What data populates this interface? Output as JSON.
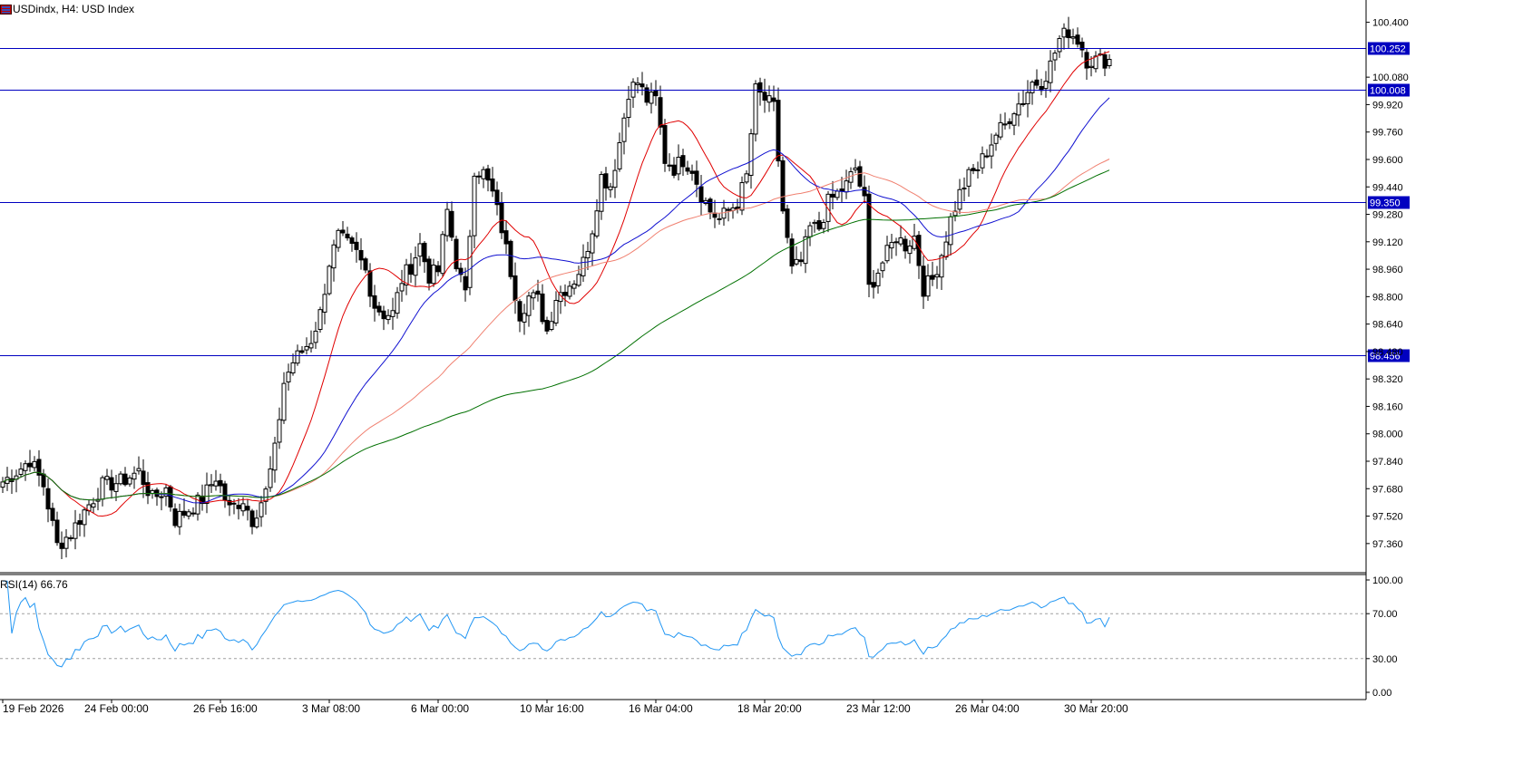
{
  "header": {
    "symbol": "USDindx",
    "timeframe": "H4",
    "description": "USD Index",
    "title": "USDindx, H4:  USD Index"
  },
  "colors": {
    "background": "#ffffff",
    "grid_frame": "#000000",
    "hline": "#0000c0",
    "ma_red": "#e00000",
    "ma_blue": "#1010d0",
    "ma_salmon": "#f08070",
    "ma_green": "#007000",
    "rsi_line": "#2196f3",
    "label_bg": "#0000c0",
    "label_text": "#ffffff"
  },
  "price_axis": {
    "ticks": [
      "100.400",
      "100.080",
      "99.920",
      "99.760",
      "99.600",
      "99.440",
      "99.280",
      "99.120",
      "98.960",
      "98.800",
      "98.640",
      "98.480",
      "98.320",
      "98.160",
      "98.000",
      "97.840",
      "97.680",
      "97.520",
      "97.360"
    ],
    "tick_values": [
      100.4,
      100.08,
      99.92,
      99.76,
      99.6,
      99.44,
      99.28,
      99.12,
      98.96,
      98.8,
      98.64,
      98.48,
      98.32,
      98.16,
      98.0,
      97.84,
      97.68,
      97.52,
      97.36
    ],
    "range": [
      97.19,
      100.53
    ]
  },
  "horizontal_lines": [
    {
      "value": 100.252,
      "label": "100.252"
    },
    {
      "value": 100.008,
      "label": "100.008"
    },
    {
      "value": 99.35,
      "label": "99.350"
    },
    {
      "value": 98.456,
      "label": "98.456"
    }
  ],
  "time_axis": {
    "labels": [
      "19 Feb 2026",
      "24 Feb 00:00",
      "26 Feb 16:00",
      "3 Mar 08:00",
      "6 Mar 00:00",
      "10 Mar 16:00",
      "16 Mar 04:00",
      "18 Mar 20:00",
      "23 Mar 12:00",
      "26 Mar 04:00",
      "30 Mar 20:00"
    ],
    "bar_index": [
      0,
      24,
      48,
      72,
      96,
      120,
      144,
      168,
      192,
      216,
      240
    ]
  },
  "rsi": {
    "label": "RSI(14) 66.76",
    "period": 14,
    "value": 66.76,
    "levels": [
      70,
      30
    ],
    "ticks": [
      "100.00",
      "70.00",
      "30.00",
      "0.00"
    ],
    "tick_values": [
      100,
      70,
      30,
      0
    ]
  },
  "chart_data": {
    "type": "candlestick",
    "bars": 245,
    "anchors": [
      [
        0,
        97.72
      ],
      [
        4,
        97.8
      ],
      [
        6,
        97.85
      ],
      [
        9,
        97.7
      ],
      [
        12,
        97.35
      ],
      [
        15,
        97.42
      ],
      [
        18,
        97.55
      ],
      [
        22,
        97.7
      ],
      [
        26,
        97.72
      ],
      [
        30,
        97.78
      ],
      [
        33,
        97.62
      ],
      [
        36,
        97.68
      ],
      [
        38,
        97.5
      ],
      [
        41,
        97.56
      ],
      [
        44,
        97.62
      ],
      [
        47,
        97.75
      ],
      [
        50,
        97.56
      ],
      [
        53,
        97.62
      ],
      [
        55,
        97.5
      ],
      [
        58,
        97.66
      ],
      [
        60,
        97.9
      ],
      [
        62,
        98.3
      ],
      [
        64,
        98.42
      ],
      [
        66,
        98.48
      ],
      [
        68,
        98.55
      ],
      [
        70,
        98.7
      ],
      [
        72,
        99.0
      ],
      [
        74,
        99.15
      ],
      [
        76,
        99.1
      ],
      [
        78,
        99.05
      ],
      [
        80,
        98.95
      ],
      [
        82,
        98.75
      ],
      [
        84,
        98.7
      ],
      [
        86,
        98.7
      ],
      [
        88,
        98.9
      ],
      [
        90,
        98.98
      ],
      [
        92,
        99.1
      ],
      [
        94,
        98.92
      ],
      [
        96,
        98.95
      ],
      [
        98,
        99.3
      ],
      [
        100,
        99.0
      ],
      [
        102,
        98.8
      ],
      [
        104,
        99.55
      ],
      [
        106,
        99.52
      ],
      [
        108,
        99.4
      ],
      [
        110,
        99.2
      ],
      [
        112,
        98.95
      ],
      [
        114,
        98.7
      ],
      [
        116,
        98.8
      ],
      [
        118,
        98.78
      ],
      [
        120,
        98.6
      ],
      [
        122,
        98.8
      ],
      [
        124,
        98.85
      ],
      [
        126,
        98.9
      ],
      [
        128,
        99.0
      ],
      [
        130,
        99.2
      ],
      [
        132,
        99.5
      ],
      [
        134,
        99.45
      ],
      [
        136,
        99.7
      ],
      [
        138,
        100.0
      ],
      [
        140,
        100.05
      ],
      [
        142,
        99.95
      ],
      [
        144,
        99.95
      ],
      [
        146,
        99.6
      ],
      [
        148,
        99.55
      ],
      [
        150,
        99.6
      ],
      [
        152,
        99.55
      ],
      [
        154,
        99.4
      ],
      [
        156,
        99.3
      ],
      [
        158,
        99.25
      ],
      [
        160,
        99.3
      ],
      [
        162,
        99.35
      ],
      [
        164,
        99.5
      ],
      [
        166,
        100.0
      ],
      [
        168,
        99.95
      ],
      [
        170,
        99.9
      ],
      [
        172,
        99.3
      ],
      [
        174,
        98.95
      ],
      [
        176,
        99.0
      ],
      [
        178,
        99.2
      ],
      [
        180,
        99.2
      ],
      [
        182,
        99.35
      ],
      [
        184,
        99.4
      ],
      [
        186,
        99.45
      ],
      [
        188,
        99.55
      ],
      [
        190,
        99.35
      ],
      [
        191,
        98.85
      ],
      [
        193,
        98.95
      ],
      [
        195,
        99.05
      ],
      [
        197,
        99.15
      ],
      [
        199,
        99.1
      ],
      [
        201,
        99.15
      ],
      [
        203,
        98.85
      ],
      [
        205,
        98.9
      ],
      [
        207,
        99.05
      ],
      [
        209,
        99.25
      ],
      [
        211,
        99.4
      ],
      [
        213,
        99.5
      ],
      [
        215,
        99.55
      ],
      [
        217,
        99.65
      ],
      [
        219,
        99.75
      ],
      [
        221,
        99.8
      ],
      [
        223,
        99.9
      ],
      [
        225,
        99.95
      ],
      [
        227,
        100.05
      ],
      [
        229,
        100.05
      ],
      [
        231,
        100.15
      ],
      [
        233,
        100.3
      ],
      [
        235,
        100.35
      ],
      [
        237,
        100.3
      ],
      [
        238,
        100.25
      ],
      [
        239,
        100.18
      ]
    ],
    "note_series": "OHLC candles with four moving averages (red, blue, salmon, green) and RSI(14) sub-window"
  }
}
